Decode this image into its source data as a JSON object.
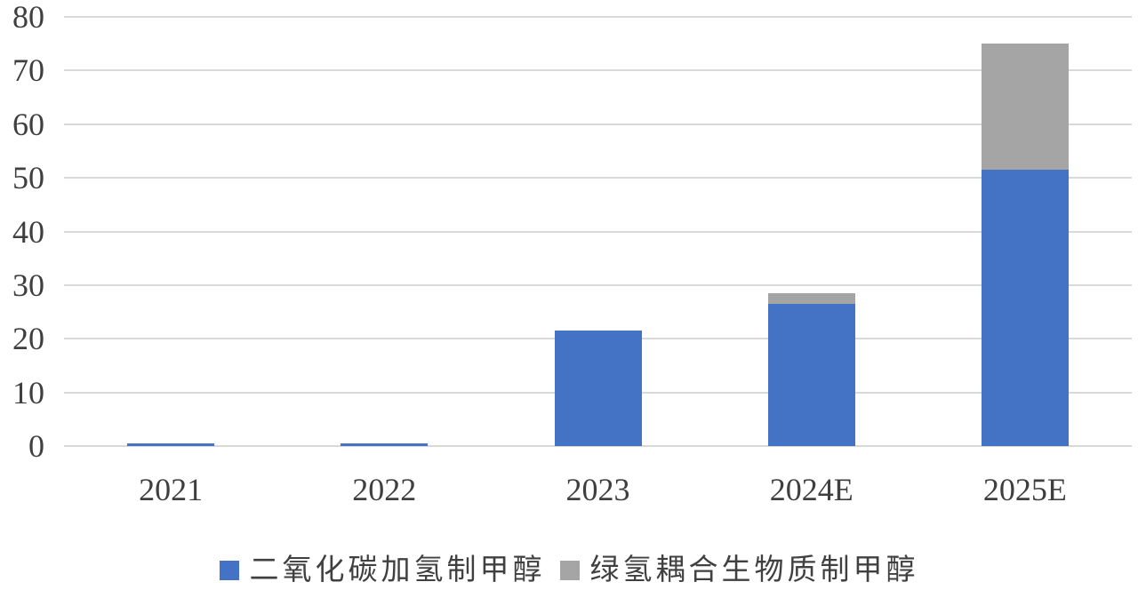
{
  "chart_data": {
    "type": "bar",
    "stacked": true,
    "title": "",
    "xlabel": "",
    "ylabel": "",
    "categories": [
      "2021",
      "2022",
      "2023",
      "2024E",
      "2025E"
    ],
    "series": [
      {
        "name": "二氧化碳加氢制甲醇",
        "color": "#4472C4",
        "values": [
          0.5,
          0.5,
          21.5,
          26.5,
          51.5
        ]
      },
      {
        "name": "绿氢耦合生物质制甲醇",
        "color": "#A5A5A5",
        "values": [
          0,
          0,
          0,
          2,
          23.5
        ]
      }
    ],
    "ylim": [
      0,
      80
    ],
    "ytick_step": 10,
    "yticks": [
      0,
      10,
      20,
      30,
      40,
      50,
      60,
      70,
      80
    ],
    "grid": true,
    "legend_position": "bottom",
    "colors": {
      "gridline": "#D9D9D9",
      "axis_text": "#3F3F3F",
      "legend_text": "#404040",
      "background": "#FFFFFF"
    }
  }
}
